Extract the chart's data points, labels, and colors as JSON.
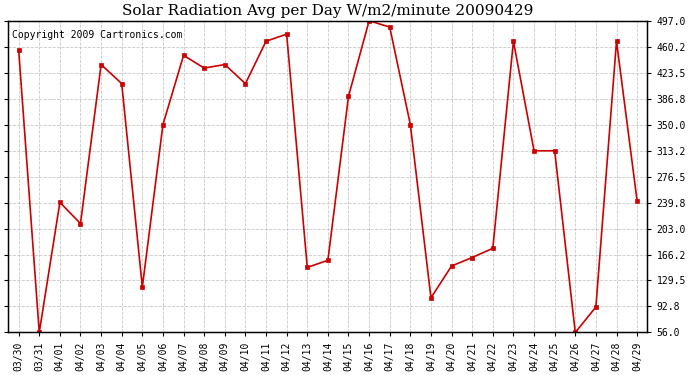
{
  "title": "Solar Radiation Avg per Day W/m2/minute 20090429",
  "copyright": "Copyright 2009 Cartronics.com",
  "dates": [
    "03/30",
    "03/31",
    "04/01",
    "04/02",
    "04/03",
    "04/04",
    "04/05",
    "04/06",
    "04/07",
    "04/08",
    "04/09",
    "04/10",
    "04/11",
    "04/12",
    "04/13",
    "04/14",
    "04/15",
    "04/16",
    "04/17",
    "04/18",
    "04/19",
    "04/20",
    "04/21",
    "04/22",
    "04/23",
    "04/24",
    "04/25",
    "04/26",
    "04/27",
    "04/28",
    "04/29"
  ],
  "values": [
    456,
    56,
    240,
    210,
    435,
    408,
    120,
    350,
    448,
    430,
    435,
    408,
    468,
    478,
    148,
    158,
    390,
    497,
    488,
    350,
    105,
    150,
    162,
    175,
    468,
    313,
    313,
    56,
    92,
    468,
    242
  ],
  "line_color": "#cc0000",
  "marker_color": "#cc0000",
  "bg_color": "#ffffff",
  "plot_bg_color": "#ffffff",
  "grid_color": "#bbbbbb",
  "yticks": [
    56.0,
    92.8,
    129.5,
    166.2,
    203.0,
    239.8,
    276.5,
    313.2,
    350.0,
    386.8,
    423.5,
    460.2,
    497.0
  ],
  "ymin": 56.0,
  "ymax": 497.0,
  "title_fontsize": 11,
  "tick_fontsize": 7,
  "copyright_fontsize": 7
}
